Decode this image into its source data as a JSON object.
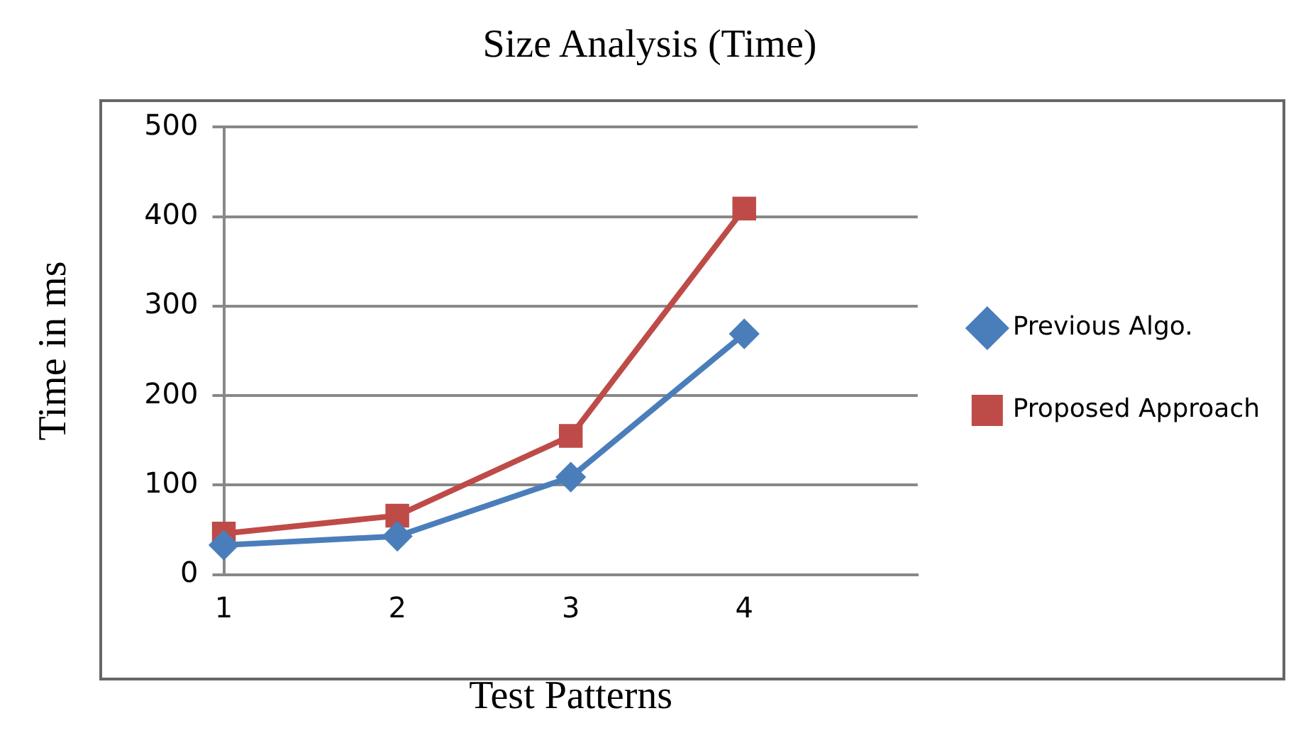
{
  "chart_data": {
    "type": "line",
    "title": "Size Analysis (Time)",
    "xlabel": "Test Patterns",
    "ylabel": "Time in ms",
    "categories": [
      "1",
      "2",
      "3",
      "4",
      null
    ],
    "series": [
      {
        "name": "Previous Algo.",
        "color": "#4a7ebb",
        "marker": "diamond",
        "values": [
          33,
          43,
          109,
          269,
          null
        ]
      },
      {
        "name": "Proposed Approach",
        "color": "#be4b48",
        "marker": "square",
        "values": [
          46,
          66,
          155,
          409,
          null
        ]
      }
    ],
    "ylim": [
      0,
      500
    ],
    "yticks": [
      0,
      100,
      200,
      300,
      400,
      500
    ],
    "grid": "y",
    "legend": "right",
    "line_style": "solid"
  }
}
